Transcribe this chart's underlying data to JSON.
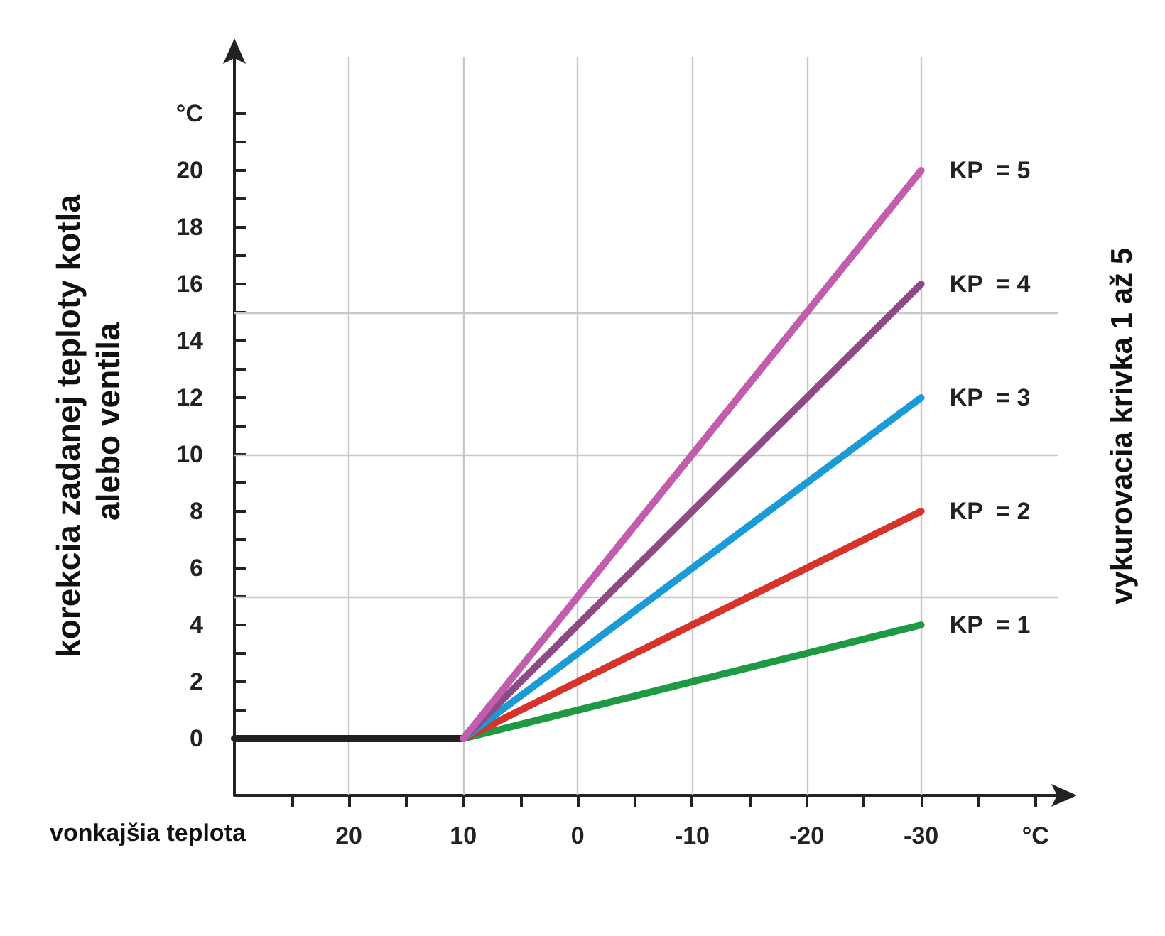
{
  "chart_data": {
    "type": "line",
    "xlabel": "vonkajšia teplota",
    "ylabel": "korekcia zadanej teploty kotla alebo ventila",
    "y2label": "vykurovacia krivka 1 až 5",
    "xlim": [
      30,
      -42
    ],
    "ylim": [
      -2,
      24
    ],
    "xticks": [
      {
        "value": 25,
        "label": null
      },
      20,
      {
        "value": 15,
        "label": null
      },
      10,
      {
        "value": 5,
        "label": null
      },
      0,
      {
        "value": -5,
        "label": null
      },
      -10,
      {
        "value": -15,
        "label": null
      },
      -20,
      {
        "value": -25,
        "label": null
      },
      -30,
      {
        "value": -35,
        "label": null
      },
      {
        "value": -40,
        "label": "°C"
      }
    ],
    "yticks": [
      0,
      {
        "value": 1,
        "label": null
      },
      2,
      {
        "value": 3,
        "label": null
      },
      4,
      {
        "value": 5,
        "label": null
      },
      6,
      {
        "value": 7,
        "label": null
      },
      8,
      {
        "value": 9,
        "label": null
      },
      10,
      {
        "value": 11,
        "label": null
      },
      12,
      {
        "value": 13,
        "label": null
      },
      14,
      {
        "value": 15,
        "label": null
      },
      16,
      {
        "value": 17,
        "label": null
      },
      18,
      {
        "value": 19,
        "label": null
      },
      20,
      {
        "value": 21,
        "label": null
      },
      {
        "value": 22,
        "label": "°C"
      }
    ],
    "grid": false,
    "legend": false,
    "marker": "none",
    "line_style": "solid",
    "ref_lines": [
      {
        "axis": "y",
        "value": 5,
        "color": "#c8c8c8"
      },
      {
        "axis": "y",
        "value": 10,
        "color": "#c8c8c8"
      },
      {
        "axis": "y",
        "value": 15,
        "color": "#c8c8c8"
      },
      {
        "axis": "x",
        "value": 20,
        "color": "#c8c8c8"
      },
      {
        "axis": "x",
        "value": 10,
        "color": "#c8c8c8"
      },
      {
        "axis": "x",
        "value": 0,
        "color": "#c8c8c8"
      },
      {
        "axis": "x",
        "value": -10,
        "color": "#c8c8c8"
      },
      {
        "axis": "x",
        "value": -20,
        "color": "#c8c8c8"
      },
      {
        "axis": "x",
        "value": -30,
        "color": "#c8c8c8"
      }
    ],
    "series": [
      {
        "color": "#231f20",
        "x": [
          30,
          10
        ],
        "values": [
          0,
          0
        ]
      },
      {
        "name": "KP  = 1",
        "color": "#1e9a44",
        "x": [
          10,
          -30
        ],
        "values": [
          0,
          4
        ]
      },
      {
        "name": "KP  = 2",
        "color": "#d7332b",
        "x": [
          10,
          -30
        ],
        "values": [
          0,
          8
        ]
      },
      {
        "name": "KP  = 3",
        "color": "#1a9ad6",
        "x": [
          10,
          -30
        ],
        "values": [
          0,
          12
        ]
      },
      {
        "name": "KP  = 4",
        "color": "#8e4a87",
        "x": [
          10,
          -30
        ],
        "values": [
          0,
          16
        ]
      },
      {
        "name": "KP  = 5",
        "color": "#c25cad",
        "x": [
          10,
          -30
        ],
        "values": [
          0,
          20
        ]
      }
    ]
  }
}
